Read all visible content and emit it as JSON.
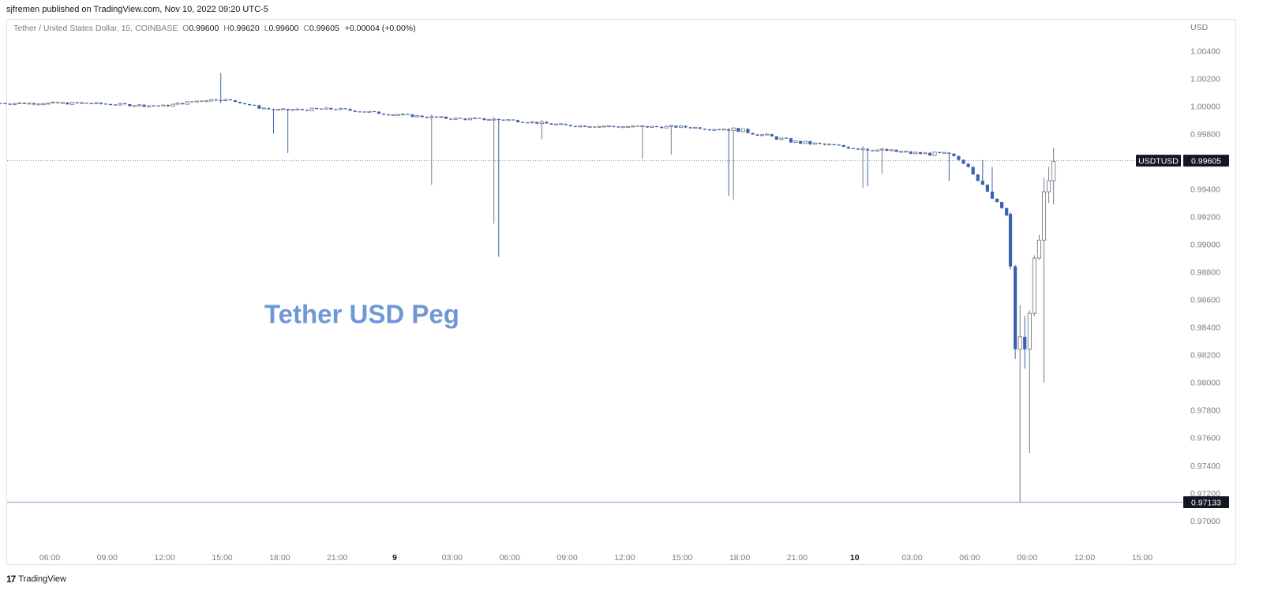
{
  "publisher_line": "sjfremen published on TradingView.com, Nov 10, 2022 09:20 UTC-5",
  "legend": {
    "symbol": "Tether / United States Dollar, 15, COINBASE",
    "o_label": "O",
    "o_value": "0.99600",
    "h_label": "H",
    "h_value": "0.99620",
    "l_label": "L",
    "l_value": "0.99600",
    "c_label": "C",
    "c_value": "0.99605",
    "change": "+0.00004 (+0.00%)"
  },
  "brand": {
    "logo": "17",
    "name": "TradingView"
  },
  "colors": {
    "up": "#787b86",
    "down": "#3a62b0",
    "annotation": "#6e97d6",
    "badge": "#131722"
  },
  "chart_data": {
    "type": "candlestick",
    "currency_label": "USD",
    "ylim": [
      0.9688,
      1.0052
    ],
    "y_ticks": [
      "1.00400",
      "1.00200",
      "1.00000",
      "0.99800",
      "0.99600",
      "0.99400",
      "0.99200",
      "0.99000",
      "0.98800",
      "0.98600",
      "0.98400",
      "0.98200",
      "0.98000",
      "0.97800",
      "0.97600",
      "0.97400",
      "0.97200",
      "0.97000"
    ],
    "x_ticks": [
      {
        "label": "06:00",
        "hours": 6,
        "bold": false
      },
      {
        "label": "09:00",
        "hours": 9,
        "bold": false
      },
      {
        "label": "12:00",
        "hours": 12,
        "bold": false
      },
      {
        "label": "15:00",
        "hours": 15,
        "bold": false
      },
      {
        "label": "18:00",
        "hours": 18,
        "bold": false
      },
      {
        "label": "21:00",
        "hours": 21,
        "bold": false
      },
      {
        "label": "9",
        "hours": 24,
        "bold": true
      },
      {
        "label": "03:00",
        "hours": 27,
        "bold": false
      },
      {
        "label": "06:00",
        "hours": 30,
        "bold": false
      },
      {
        "label": "09:00",
        "hours": 33,
        "bold": false
      },
      {
        "label": "12:00",
        "hours": 36,
        "bold": false
      },
      {
        "label": "15:00",
        "hours": 39,
        "bold": false
      },
      {
        "label": "18:00",
        "hours": 42,
        "bold": false
      },
      {
        "label": "21:00",
        "hours": 45,
        "bold": false
      },
      {
        "label": "10",
        "hours": 48,
        "bold": true
      },
      {
        "label": "03:00",
        "hours": 51,
        "bold": false
      },
      {
        "label": "06:00",
        "hours": 54,
        "bold": false
      },
      {
        "label": "09:00",
        "hours": 57,
        "bold": false
      },
      {
        "label": "12:00",
        "hours": 60,
        "bold": false
      },
      {
        "label": "15:00",
        "hours": 63,
        "bold": false
      }
    ],
    "x_range_hours": [
      3.3,
      65.6
    ],
    "annotation": {
      "text": "Tether USD Peg",
      "hours": 17.2,
      "price": 0.9843
    },
    "price_lines": [
      {
        "label": "USDTUSD",
        "value": "0.99605",
        "price": 0.99605,
        "style": "dotted"
      },
      {
        "label": "",
        "value": "0.97133",
        "price": 0.97133,
        "style": "solid"
      }
    ],
    "keypoints": [
      [
        3.3,
        1.0002
      ],
      [
        8,
        1.0002
      ],
      [
        12,
        1.0
      ],
      [
        14,
        1.0004
      ],
      [
        15,
        1.0005
      ],
      [
        16,
        1.0003
      ],
      [
        17,
        0.9999
      ],
      [
        18,
        0.9997
      ],
      [
        21,
        0.9998
      ],
      [
        24,
        0.9994
      ],
      [
        27,
        0.9991
      ],
      [
        30,
        0.999
      ],
      [
        33,
        0.9986
      ],
      [
        36,
        0.9985
      ],
      [
        39,
        0.9985
      ],
      [
        42,
        0.9983
      ],
      [
        45,
        0.9974
      ],
      [
        48,
        0.997
      ],
      [
        51,
        0.9966
      ],
      [
        53,
        0.9965
      ],
      [
        54,
        0.9958
      ],
      [
        55,
        0.9938
      ],
      [
        56.0,
        0.9925
      ],
      [
        56.6,
        0.988
      ],
      [
        57.2,
        0.982
      ],
      [
        57.6,
        0.984
      ],
      [
        58.0,
        0.986
      ],
      [
        58.4,
        0.9905
      ],
      [
        58.8,
        0.9935
      ],
      [
        59.1,
        0.9955
      ],
      [
        59.35,
        0.99605
      ]
    ],
    "candles": [
      {
        "t": 56.0,
        "o": 0.9922,
        "h": 0.9923,
        "l": 0.9882,
        "c": 0.9884
      },
      {
        "t": 56.25,
        "o": 0.9884,
        "h": 0.9885,
        "l": 0.9817,
        "c": 0.9824
      },
      {
        "t": 56.5,
        "o": 0.9824,
        "h": 0.9856,
        "l": 0.97133,
        "c": 0.9833
      },
      {
        "t": 56.75,
        "o": 0.9833,
        "h": 0.9848,
        "l": 0.981,
        "c": 0.9824
      },
      {
        "t": 57.0,
        "o": 0.9824,
        "h": 0.9852,
        "l": 0.9749,
        "c": 0.985
      },
      {
        "t": 57.25,
        "o": 0.985,
        "h": 0.9892,
        "l": 0.9848,
        "c": 0.989
      },
      {
        "t": 57.5,
        "o": 0.989,
        "h": 0.9907,
        "l": 0.9889,
        "c": 0.9903
      },
      {
        "t": 57.75,
        "o": 0.9903,
        "h": 0.9948,
        "l": 0.98,
        "c": 0.9938
      },
      {
        "t": 58.0,
        "o": 0.9938,
        "h": 0.9956,
        "l": 0.993,
        "c": 0.9946
      },
      {
        "t": 58.25,
        "o": 0.9946,
        "h": 0.997,
        "l": 0.9929,
        "c": 0.996
      }
    ],
    "spikes": [
      {
        "t": 14.9,
        "h": 1.0024,
        "l": 1.0002
      },
      {
        "t": 17.5,
        "h": 0.9996,
        "l": 0.998
      },
      {
        "t": 18.3,
        "h": 0.9997,
        "l": 0.9966
      },
      {
        "t": 25.8,
        "h": 0.9994,
        "l": 0.9943
      },
      {
        "t": 29.1,
        "h": 0.9992,
        "l": 0.9915
      },
      {
        "t": 29.4,
        "h": 0.9991,
        "l": 0.9891
      },
      {
        "t": 31.5,
        "h": 0.999,
        "l": 0.9976
      },
      {
        "t": 36.7,
        "h": 0.9986,
        "l": 0.9962
      },
      {
        "t": 38.3,
        "h": 0.9986,
        "l": 0.9965
      },
      {
        "t": 41.2,
        "h": 0.9984,
        "l": 0.9935
      },
      {
        "t": 41.6,
        "h": 0.9983,
        "l": 0.9932
      },
      {
        "t": 48.2,
        "h": 0.9971,
        "l": 0.9941
      },
      {
        "t": 48.6,
        "h": 0.997,
        "l": 0.9942
      },
      {
        "t": 49.3,
        "h": 0.9969,
        "l": 0.9951
      },
      {
        "t": 52.9,
        "h": 0.9964,
        "l": 0.9946
      },
      {
        "t": 54.6,
        "h": 0.9961,
        "l": 0.9947
      },
      {
        "t": 55.1,
        "h": 0.9956,
        "l": 0.9942
      }
    ]
  }
}
